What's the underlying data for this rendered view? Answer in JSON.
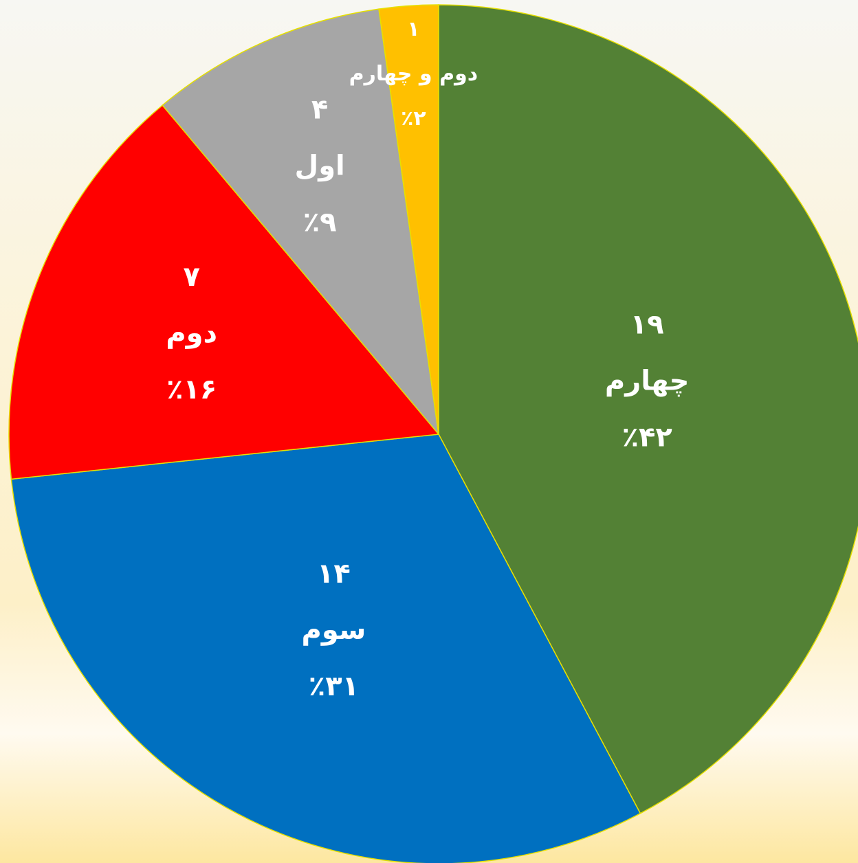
{
  "chart_data": {
    "type": "pie",
    "categories": [
      "چهارم",
      "سوم",
      "دوم",
      "اول",
      "دوم و چهارم"
    ],
    "values": [
      19,
      14,
      7,
      4,
      1
    ],
    "value_labels": [
      "۱۹",
      "۱۴",
      "۷",
      "۴",
      "۱"
    ],
    "percent_labels": [
      "٪۴۲",
      "٪۳۱",
      "٪۱۶",
      "٪۹",
      "٪۲"
    ],
    "colors": [
      "#538135",
      "#0070c0",
      "#ff0000",
      "#a6a6a6",
      "#ffc000"
    ]
  }
}
